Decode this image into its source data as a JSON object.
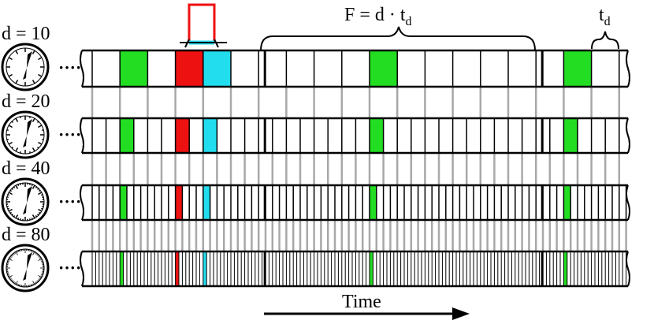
{
  "labels": {
    "formula_main": "F = d · t",
    "formula_sub": "d",
    "td_main": "t",
    "td_sub": "d",
    "time": "Time",
    "ellipsis": "····"
  },
  "rows": [
    {
      "label": "d = 10",
      "d": 10
    },
    {
      "label": "d = 20",
      "d": 20
    },
    {
      "label": "d = 40",
      "d": 40
    },
    {
      "label": "d = 80",
      "d": 80
    }
  ],
  "colors": {
    "green": "#22dd22",
    "red": "#ee1111",
    "cyan": "#22ddee",
    "connector": "#a8a8a8",
    "highlight_box": "#ee1111",
    "highlight_bar": "#22ddee"
  },
  "highlighted_cells": {
    "green": [
      1,
      10,
      17
    ],
    "red": [
      3
    ],
    "cyan": [
      4
    ]
  },
  "period_boundaries_in_cells": [
    6,
    16
  ],
  "visible_cells_at_d10": 19
}
